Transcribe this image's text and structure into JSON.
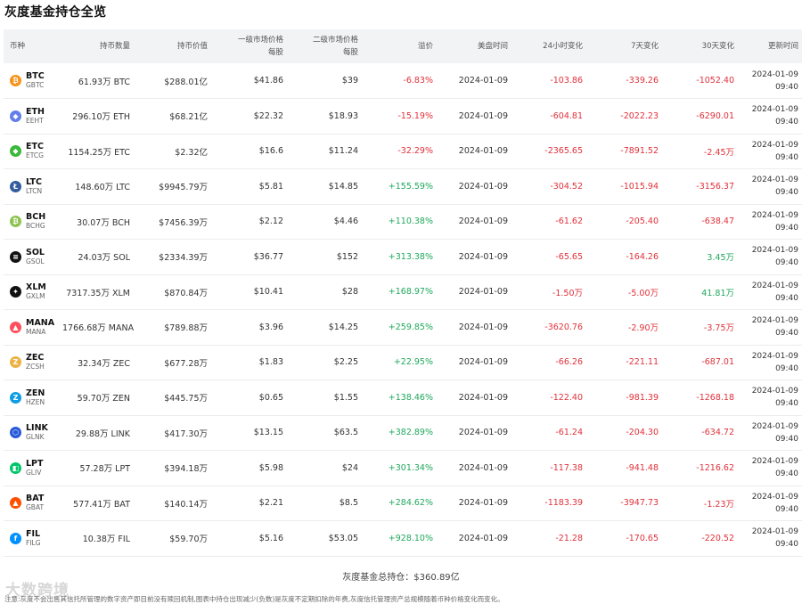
{
  "page_title": "灰度基金持仓全览",
  "columns": [
    "币种",
    "持币数量",
    "持币价值",
    "一级市场价格\n每股",
    "二级市场价格\n每股",
    "溢价",
    "美盘时间",
    "24小时变化",
    "7天变化",
    "30天变化",
    "更新时间"
  ],
  "rows": [
    {
      "symbol": "BTC",
      "sub": "GBTC",
      "color": "#f7931a",
      "glyph": "₿",
      "amount": "61.93万 BTC",
      "value": "$288.01亿",
      "primary": "$41.86",
      "secondary": "$39",
      "premium": "-6.83%",
      "premium_sign": "neg",
      "date": "2024-01-09",
      "d24": "-103.86",
      "d24s": "neg",
      "d7": "-339.26",
      "d7s": "neg",
      "d30": "-1052.40",
      "d30s": "neg",
      "upd_date": "2024-01-09",
      "upd_time": "09:40"
    },
    {
      "symbol": "ETH",
      "sub": "EEHT",
      "color": "#627eea",
      "glyph": "◆",
      "amount": "296.10万 ETH",
      "value": "$68.21亿",
      "primary": "$22.32",
      "secondary": "$18.93",
      "premium": "-15.19%",
      "premium_sign": "neg",
      "date": "2024-01-09",
      "d24": "-604.81",
      "d24s": "neg",
      "d7": "-2022.23",
      "d7s": "neg",
      "d30": "-6290.01",
      "d30s": "neg",
      "upd_date": "2024-01-09",
      "upd_time": "09:40"
    },
    {
      "symbol": "ETC",
      "sub": "ETCG",
      "color": "#3ab83a",
      "glyph": "◆",
      "amount": "1154.25万 ETC",
      "value": "$2.32亿",
      "primary": "$16.6",
      "secondary": "$11.24",
      "premium": "-32.29%",
      "premium_sign": "neg",
      "date": "2024-01-09",
      "d24": "-2365.65",
      "d24s": "neg",
      "d7": "-7891.52",
      "d7s": "neg",
      "d30": "-2.45万",
      "d30s": "neg",
      "upd_date": "2024-01-09",
      "upd_time": "09:40"
    },
    {
      "symbol": "LTC",
      "sub": "LTCN",
      "color": "#345d9d",
      "glyph": "Ł",
      "amount": "148.60万 LTC",
      "value": "$9945.79万",
      "primary": "$5.81",
      "secondary": "$14.85",
      "premium": "+155.59%",
      "premium_sign": "pos",
      "date": "2024-01-09",
      "d24": "-304.52",
      "d24s": "neg",
      "d7": "-1015.94",
      "d7s": "neg",
      "d30": "-3156.37",
      "d30s": "neg",
      "upd_date": "2024-01-09",
      "upd_time": "09:40"
    },
    {
      "symbol": "BCH",
      "sub": "BCHG",
      "color": "#8dc351",
      "glyph": "₿",
      "amount": "30.07万 BCH",
      "value": "$7456.39万",
      "primary": "$2.12",
      "secondary": "$4.46",
      "premium": "+110.38%",
      "premium_sign": "pos",
      "date": "2024-01-09",
      "d24": "-61.62",
      "d24s": "neg",
      "d7": "-205.40",
      "d7s": "neg",
      "d30": "-638.47",
      "d30s": "neg",
      "upd_date": "2024-01-09",
      "upd_time": "09:40"
    },
    {
      "symbol": "SOL",
      "sub": "GSOL",
      "color": "#111111",
      "glyph": "≡",
      "amount": "24.03万 SOL",
      "value": "$2334.39万",
      "primary": "$36.77",
      "secondary": "$152",
      "premium": "+313.38%",
      "premium_sign": "pos",
      "date": "2024-01-09",
      "d24": "-65.65",
      "d24s": "neg",
      "d7": "-164.26",
      "d7s": "neg",
      "d30": "3.45万",
      "d30s": "pos",
      "upd_date": "2024-01-09",
      "upd_time": "09:40"
    },
    {
      "symbol": "XLM",
      "sub": "GXLM",
      "color": "#111111",
      "glyph": "✦",
      "amount": "7317.35万 XLM",
      "value": "$870.84万",
      "primary": "$10.41",
      "secondary": "$28",
      "premium": "+168.97%",
      "premium_sign": "pos",
      "date": "2024-01-09",
      "d24": "-1.50万",
      "d24s": "neg",
      "d7": "-5.00万",
      "d7s": "neg",
      "d30": "41.81万",
      "d30s": "pos",
      "upd_date": "2024-01-09",
      "upd_time": "09:40"
    },
    {
      "symbol": "MANA",
      "sub": "MANA",
      "color": "#ff4f5e",
      "glyph": "▲",
      "amount": "1766.68万 MANA",
      "value": "$789.88万",
      "primary": "$3.96",
      "secondary": "$14.25",
      "premium": "+259.85%",
      "premium_sign": "pos",
      "date": "2024-01-09",
      "d24": "-3620.76",
      "d24s": "neg",
      "d7": "-2.90万",
      "d7s": "neg",
      "d30": "-3.75万",
      "d30s": "neg",
      "upd_date": "2024-01-09",
      "upd_time": "09:40"
    },
    {
      "symbol": "ZEC",
      "sub": "ZCSH",
      "color": "#ecb244",
      "glyph": "Z",
      "amount": "32.34万 ZEC",
      "value": "$677.28万",
      "primary": "$1.83",
      "secondary": "$2.25",
      "premium": "+22.95%",
      "premium_sign": "pos",
      "date": "2024-01-09",
      "d24": "-66.26",
      "d24s": "neg",
      "d7": "-221.11",
      "d7s": "neg",
      "d30": "-687.01",
      "d30s": "neg",
      "upd_date": "2024-01-09",
      "upd_time": "09:40"
    },
    {
      "symbol": "ZEN",
      "sub": "HZEN",
      "color": "#0e9de5",
      "glyph": "Z",
      "amount": "59.70万 ZEN",
      "value": "$445.75万",
      "primary": "$0.65",
      "secondary": "$1.55",
      "premium": "+138.46%",
      "premium_sign": "pos",
      "date": "2024-01-09",
      "d24": "-122.40",
      "d24s": "neg",
      "d7": "-981.39",
      "d7s": "neg",
      "d30": "-1268.18",
      "d30s": "neg",
      "upd_date": "2024-01-09",
      "upd_time": "09:40"
    },
    {
      "symbol": "LINK",
      "sub": "GLNK",
      "color": "#2a5ada",
      "glyph": "⬡",
      "amount": "29.88万 LINK",
      "value": "$417.30万",
      "primary": "$13.15",
      "secondary": "$63.5",
      "premium": "+382.89%",
      "premium_sign": "pos",
      "date": "2024-01-09",
      "d24": "-61.24",
      "d24s": "neg",
      "d7": "-204.30",
      "d7s": "neg",
      "d30": "-634.72",
      "d30s": "neg",
      "upd_date": "2024-01-09",
      "upd_time": "09:40"
    },
    {
      "symbol": "LPT",
      "sub": "GLIV",
      "color": "#00c56a",
      "glyph": "◧",
      "amount": "57.28万 LPT",
      "value": "$394.18万",
      "primary": "$5.98",
      "secondary": "$24",
      "premium": "+301.34%",
      "premium_sign": "pos",
      "date": "2024-01-09",
      "d24": "-117.38",
      "d24s": "neg",
      "d7": "-941.48",
      "d7s": "neg",
      "d30": "-1216.62",
      "d30s": "neg",
      "upd_date": "2024-01-09",
      "upd_time": "09:40"
    },
    {
      "symbol": "BAT",
      "sub": "GBAT",
      "color": "#ff5000",
      "glyph": "▲",
      "amount": "577.41万 BAT",
      "value": "$140.14万",
      "primary": "$2.21",
      "secondary": "$8.5",
      "premium": "+284.62%",
      "premium_sign": "pos",
      "date": "2024-01-09",
      "d24": "-1183.39",
      "d24s": "neg",
      "d7": "-3947.73",
      "d7s": "neg",
      "d30": "-1.23万",
      "d30s": "neg",
      "upd_date": "2024-01-09",
      "upd_time": "09:40"
    },
    {
      "symbol": "FIL",
      "sub": "FILG",
      "color": "#0090ff",
      "glyph": "f",
      "amount": "10.38万 FIL",
      "value": "$59.70万",
      "primary": "$5.16",
      "secondary": "$53.05",
      "premium": "+928.10%",
      "premium_sign": "pos",
      "date": "2024-01-09",
      "d24": "-21.28",
      "d24s": "neg",
      "d7": "-170.65",
      "d7s": "neg",
      "d30": "-220.52",
      "d30s": "neg",
      "upd_date": "2024-01-09",
      "upd_time": "09:40"
    }
  ],
  "total_label": "灰度基金总持仓：$360.89亿",
  "footnote": "注意:灰度不会出售其信托所管理的数字资产即目前没有赎回机制,图表中持仓出现减少(负数)是灰度不定期扣除的年费,灰度信托管理资产总规模随着币种价格变化而变化。",
  "watermark": "大数跨境"
}
